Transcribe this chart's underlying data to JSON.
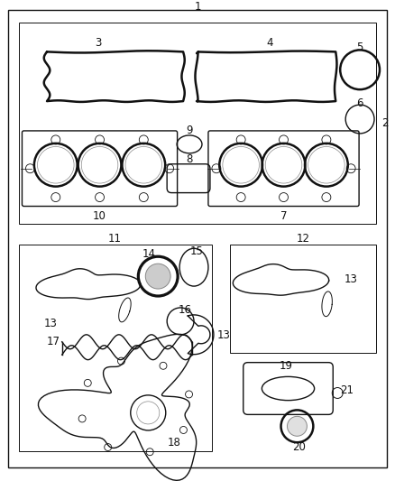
{
  "background_color": "#ffffff",
  "line_color": "#111111",
  "fig_width": 4.38,
  "fig_height": 5.33,
  "dpi": 100
}
